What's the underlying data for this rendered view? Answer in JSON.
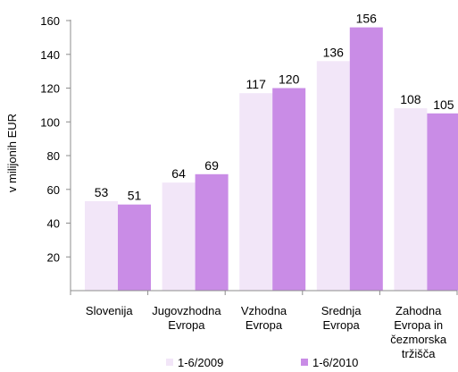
{
  "chart_data": {
    "type": "bar",
    "categories": [
      [
        "Slovenija"
      ],
      [
        "Jugovzhodna",
        "Evropa"
      ],
      [
        "Vzhodna",
        "Evropa"
      ],
      [
        "Srednja",
        "Evropa"
      ],
      [
        "Zahodna",
        "Evropa in",
        "čezmorska",
        "tržišča"
      ]
    ],
    "series": [
      {
        "name": "1-6/2009",
        "values": [
          53,
          64,
          117,
          136,
          108
        ],
        "color": "#F2E6F8"
      },
      {
        "name": "1-6/2010",
        "values": [
          51,
          69,
          120,
          156,
          105
        ],
        "color": "#C98CE6"
      }
    ],
    "ylabel": "v milijonih EUR",
    "ylim": [
      0,
      160
    ],
    "yticks": [
      20,
      40,
      60,
      80,
      100,
      120,
      140,
      160
    ],
    "grid": false,
    "legend_position": "bottom"
  }
}
